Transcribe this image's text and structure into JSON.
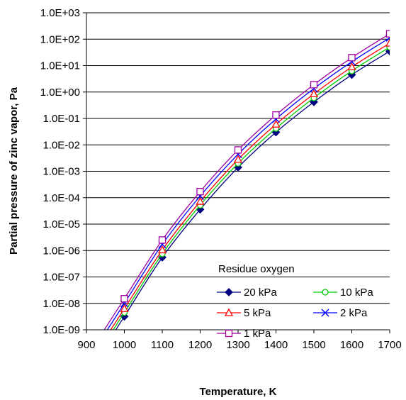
{
  "chart_data": {
    "type": "line",
    "xlabel": "Temperature, K",
    "ylabel": "Partial pressure of zinc vapor, Pa",
    "xlim": [
      900,
      1700
    ],
    "ylim": [
      1e-09,
      1000
    ],
    "yscale": "log",
    "x_ticks": [
      "900",
      "1000",
      "1100",
      "1200",
      "1300",
      "1400",
      "1500",
      "1600",
      "1700"
    ],
    "y_ticks": [
      "1.0E-09",
      "1.0E-08",
      "1.0E-07",
      "1.0E-06",
      "1.0E-05",
      "1.0E-04",
      "1.0E-03",
      "1.0E-02",
      "1.0E-01",
      "1.0E+00",
      "1.0E+01",
      "1.0E+02",
      "1.0E+03"
    ],
    "grid": "horizontal",
    "legend_title": "Residue oxygen",
    "legend_position": "bottom-right",
    "x": [
      1000,
      1100,
      1200,
      1300,
      1400,
      1500,
      1600,
      1700
    ],
    "series": [
      {
        "name": "20 kPa",
        "color": "#000080",
        "marker": "diamond",
        "values": [
          3.2e-09,
          5.5e-07,
          3.6e-05,
          0.0014,
          0.03,
          0.42,
          4.5,
          35
        ]
      },
      {
        "name": "10 kPa",
        "color": "#00cc00",
        "marker": "circle",
        "values": [
          4.5e-09,
          7.5e-07,
          5.2e-05,
          0.002,
          0.042,
          0.6,
          6.3,
          50
        ]
      },
      {
        "name": "5 kPa",
        "color": "#ff0000",
        "marker": "triangle",
        "values": [
          6.3e-09,
          1.05e-06,
          7.2e-05,
          0.0028,
          0.06,
          0.85,
          8.9,
          70
        ]
      },
      {
        "name": "2 kPa",
        "color": "#0000ff",
        "marker": "x",
        "values": [
          1e-08,
          1.7e-06,
          0.000115,
          0.0044,
          0.095,
          1.35,
          14,
          112
        ]
      },
      {
        "name": "1 kPa",
        "color": "#a000a0",
        "marker": "square",
        "values": [
          1.5e-08,
          2.5e-06,
          0.00017,
          0.0064,
          0.135,
          1.9,
          20,
          160
        ]
      }
    ]
  }
}
